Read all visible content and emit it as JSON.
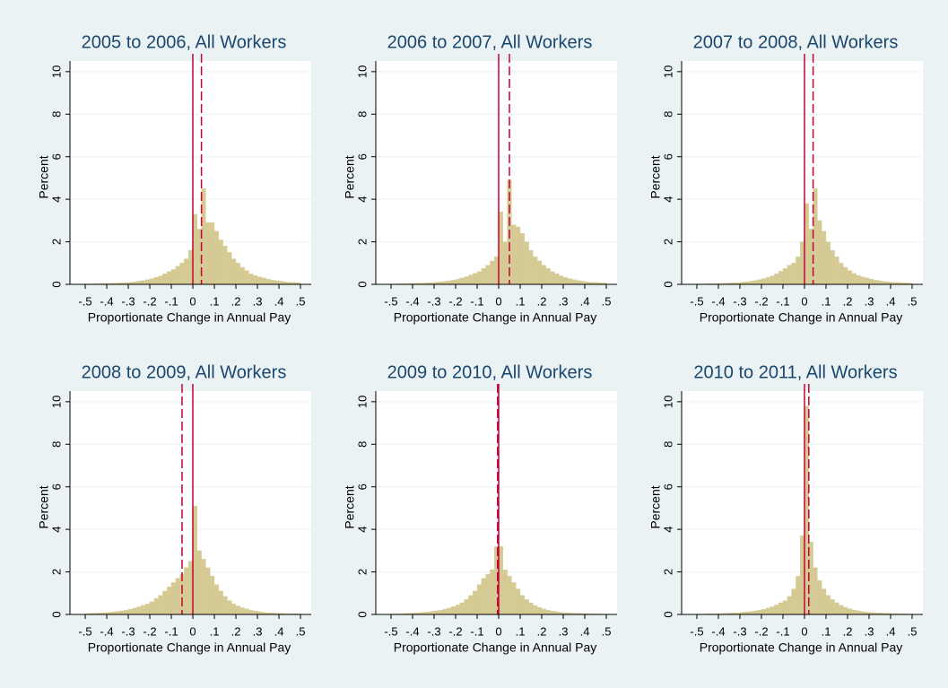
{
  "chart_data": [
    {
      "type": "histogram",
      "title": "2005 to 2006, All Workers",
      "xlabel": "Proportionate Change in Annual Pay",
      "ylabel": "Percent",
      "bins": [
        -0.5,
        -0.48,
        -0.46,
        -0.44,
        -0.42,
        -0.4,
        -0.38,
        -0.36,
        -0.34,
        -0.32,
        -0.3,
        -0.28,
        -0.26,
        -0.24,
        -0.22,
        -0.2,
        -0.18,
        -0.16,
        -0.14,
        -0.12,
        -0.1,
        -0.08,
        -0.06,
        -0.04,
        -0.02,
        0,
        0.02,
        0.04,
        0.06,
        0.08,
        0.1,
        0.12,
        0.14,
        0.16,
        0.18,
        0.2,
        0.22,
        0.24,
        0.26,
        0.28,
        0.3,
        0.32,
        0.34,
        0.36,
        0.38,
        0.4,
        0.42,
        0.44,
        0.46,
        0.48,
        0.5
      ],
      "values": [
        0.02,
        0.02,
        0.03,
        0.03,
        0.04,
        0.04,
        0.05,
        0.06,
        0.07,
        0.08,
        0.1,
        0.12,
        0.15,
        0.18,
        0.22,
        0.27,
        0.33,
        0.4,
        0.5,
        0.6,
        0.7,
        0.85,
        1.0,
        1.2,
        1.6,
        3.3,
        2.6,
        4.5,
        2.9,
        2.9,
        2.5,
        2.1,
        1.8,
        1.5,
        1.2,
        1.0,
        0.8,
        0.65,
        0.5,
        0.42,
        0.35,
        0.3,
        0.25,
        0.2,
        0.17,
        0.15,
        0.12,
        0.1,
        0.09,
        0.08
      ],
      "color": "#d6ca94",
      "xlim": [
        -0.55,
        0.55
      ],
      "ylim": [
        0,
        10.5
      ],
      "xticks": [
        {
          "value": -0.5,
          "label": "-.5"
        },
        {
          "value": -0.4,
          "label": "-.4"
        },
        {
          "value": -0.3,
          "label": "-.3"
        },
        {
          "value": -0.2,
          "label": "-.2"
        },
        {
          "value": -0.1,
          "label": "-.1"
        },
        0,
        {
          "value": 0.1,
          "label": ".1"
        },
        {
          "value": 0.2,
          "label": ".2"
        },
        {
          "value": 0.3,
          "label": ".3"
        },
        {
          "value": 0.4,
          "label": ".4"
        },
        {
          "value": 0.5,
          "label": ".5"
        }
      ],
      "yticks": [
        0,
        2,
        4,
        6,
        8,
        10
      ],
      "grid": true,
      "reference_lines": [
        {
          "value": 0,
          "style": "solid",
          "color": "#c10534"
        },
        {
          "value": 0.04,
          "style": "dashed",
          "color": "#c10534"
        }
      ]
    },
    {
      "type": "histogram",
      "title": "2006 to 2007, All Workers",
      "xlabel": "Proportionate Change in Annual Pay",
      "ylabel": "Percent",
      "bins": [
        -0.5,
        -0.48,
        -0.46,
        -0.44,
        -0.42,
        -0.4,
        -0.38,
        -0.36,
        -0.34,
        -0.32,
        -0.3,
        -0.28,
        -0.26,
        -0.24,
        -0.22,
        -0.2,
        -0.18,
        -0.16,
        -0.14,
        -0.12,
        -0.1,
        -0.08,
        -0.06,
        -0.04,
        -0.02,
        0,
        0.02,
        0.04,
        0.06,
        0.08,
        0.1,
        0.12,
        0.14,
        0.16,
        0.18,
        0.2,
        0.22,
        0.24,
        0.26,
        0.28,
        0.3,
        0.32,
        0.34,
        0.36,
        0.38,
        0.4,
        0.42,
        0.44,
        0.46,
        0.48,
        0.5
      ],
      "values": [
        0.02,
        0.02,
        0.03,
        0.03,
        0.04,
        0.04,
        0.05,
        0.06,
        0.07,
        0.08,
        0.1,
        0.12,
        0.14,
        0.17,
        0.2,
        0.24,
        0.3,
        0.36,
        0.44,
        0.52,
        0.6,
        0.75,
        0.9,
        1.1,
        1.3,
        3.4,
        2.0,
        4.9,
        2.8,
        2.7,
        2.4,
        2.0,
        1.6,
        1.3,
        1.1,
        0.9,
        0.75,
        0.6,
        0.5,
        0.4,
        0.33,
        0.27,
        0.22,
        0.18,
        0.15,
        0.12,
        0.1,
        0.09,
        0.08,
        0.07
      ],
      "color": "#d6ca94",
      "xlim": [
        -0.55,
        0.55
      ],
      "ylim": [
        0,
        10.5
      ],
      "xticks": [
        {
          "value": -0.5,
          "label": "-.5"
        },
        {
          "value": -0.4,
          "label": "-.4"
        },
        {
          "value": -0.3,
          "label": "-.3"
        },
        {
          "value": -0.2,
          "label": "-.2"
        },
        {
          "value": -0.1,
          "label": "-.1"
        },
        0,
        {
          "value": 0.1,
          "label": ".1"
        },
        {
          "value": 0.2,
          "label": ".2"
        },
        {
          "value": 0.3,
          "label": ".3"
        },
        {
          "value": 0.4,
          "label": ".4"
        },
        {
          "value": 0.5,
          "label": ".5"
        }
      ],
      "yticks": [
        0,
        2,
        4,
        6,
        8,
        10
      ],
      "grid": true,
      "reference_lines": [
        {
          "value": 0,
          "style": "solid",
          "color": "#c10534"
        },
        {
          "value": 0.05,
          "style": "dashed",
          "color": "#c10534"
        }
      ]
    },
    {
      "type": "histogram",
      "title": "2007 to 2008, All Workers",
      "xlabel": "Proportionate Change in Annual Pay",
      "ylabel": "Percent",
      "bins": [
        -0.5,
        -0.48,
        -0.46,
        -0.44,
        -0.42,
        -0.4,
        -0.38,
        -0.36,
        -0.34,
        -0.32,
        -0.3,
        -0.28,
        -0.26,
        -0.24,
        -0.22,
        -0.2,
        -0.18,
        -0.16,
        -0.14,
        -0.12,
        -0.1,
        -0.08,
        -0.06,
        -0.04,
        -0.02,
        0,
        0.02,
        0.04,
        0.06,
        0.08,
        0.1,
        0.12,
        0.14,
        0.16,
        0.18,
        0.2,
        0.22,
        0.24,
        0.26,
        0.28,
        0.3,
        0.32,
        0.34,
        0.36,
        0.38,
        0.4,
        0.42,
        0.44,
        0.46,
        0.48,
        0.5
      ],
      "values": [
        0.02,
        0.02,
        0.03,
        0.03,
        0.04,
        0.04,
        0.05,
        0.06,
        0.07,
        0.08,
        0.1,
        0.12,
        0.15,
        0.18,
        0.22,
        0.27,
        0.33,
        0.4,
        0.5,
        0.62,
        0.75,
        0.9,
        1.0,
        1.3,
        2.0,
        3.8,
        2.6,
        4.5,
        3.0,
        2.5,
        2.0,
        1.6,
        1.3,
        1.0,
        0.8,
        0.65,
        0.52,
        0.42,
        0.35,
        0.3,
        0.25,
        0.2,
        0.17,
        0.14,
        0.12,
        0.1,
        0.09,
        0.08,
        0.07,
        0.06
      ],
      "color": "#d6ca94",
      "xlim": [
        -0.55,
        0.55
      ],
      "ylim": [
        0,
        10.5
      ],
      "xticks": [
        {
          "value": -0.5,
          "label": "-.5"
        },
        {
          "value": -0.4,
          "label": "-.4"
        },
        {
          "value": -0.3,
          "label": "-.3"
        },
        {
          "value": -0.2,
          "label": "-.2"
        },
        {
          "value": -0.1,
          "label": "-.1"
        },
        0,
        {
          "value": 0.1,
          "label": ".1"
        },
        {
          "value": 0.2,
          "label": ".2"
        },
        {
          "value": 0.3,
          "label": ".3"
        },
        {
          "value": 0.4,
          "label": ".4"
        },
        {
          "value": 0.5,
          "label": ".5"
        }
      ],
      "yticks": [
        0,
        2,
        4,
        6,
        8,
        10
      ],
      "grid": true,
      "reference_lines": [
        {
          "value": 0,
          "style": "solid",
          "color": "#c10534"
        },
        {
          "value": 0.04,
          "style": "dashed",
          "color": "#c10534"
        }
      ]
    },
    {
      "type": "histogram",
      "title": "2008 to 2009, All Workers",
      "xlabel": "Proportionate Change in Annual Pay",
      "ylabel": "Percent",
      "bins": [
        -0.5,
        -0.48,
        -0.46,
        -0.44,
        -0.42,
        -0.4,
        -0.38,
        -0.36,
        -0.34,
        -0.32,
        -0.3,
        -0.28,
        -0.26,
        -0.24,
        -0.22,
        -0.2,
        -0.18,
        -0.16,
        -0.14,
        -0.12,
        -0.1,
        -0.08,
        -0.06,
        -0.04,
        -0.02,
        0,
        0.02,
        0.04,
        0.06,
        0.08,
        0.1,
        0.12,
        0.14,
        0.16,
        0.18,
        0.2,
        0.22,
        0.24,
        0.26,
        0.28,
        0.3,
        0.32,
        0.34,
        0.36,
        0.38,
        0.4,
        0.42,
        0.44,
        0.46,
        0.48,
        0.5
      ],
      "values": [
        0.04,
        0.05,
        0.06,
        0.07,
        0.08,
        0.1,
        0.12,
        0.14,
        0.17,
        0.2,
        0.25,
        0.3,
        0.36,
        0.43,
        0.5,
        0.6,
        0.75,
        0.9,
        1.1,
        1.3,
        1.5,
        1.7,
        1.9,
        2.2,
        2.5,
        5.1,
        3.0,
        2.6,
        2.2,
        1.8,
        1.4,
        1.1,
        0.85,
        0.65,
        0.5,
        0.4,
        0.32,
        0.26,
        0.2,
        0.16,
        0.13,
        0.1,
        0.08,
        0.07,
        0.06,
        0.05,
        0.04,
        0.04,
        0.03,
        0.03
      ],
      "color": "#d6ca94",
      "xlim": [
        -0.55,
        0.55
      ],
      "ylim": [
        0,
        10.5
      ],
      "xticks": [
        {
          "value": -0.5,
          "label": "-.5"
        },
        {
          "value": -0.4,
          "label": "-.4"
        },
        {
          "value": -0.3,
          "label": "-.3"
        },
        {
          "value": -0.2,
          "label": "-.2"
        },
        {
          "value": -0.1,
          "label": "-.1"
        },
        0,
        {
          "value": 0.1,
          "label": ".1"
        },
        {
          "value": 0.2,
          "label": ".2"
        },
        {
          "value": 0.3,
          "label": ".3"
        },
        {
          "value": 0.4,
          "label": ".4"
        },
        {
          "value": 0.5,
          "label": ".5"
        }
      ],
      "yticks": [
        0,
        2,
        4,
        6,
        8,
        10
      ],
      "grid": true,
      "reference_lines": [
        {
          "value": 0,
          "style": "solid",
          "color": "#c10534"
        },
        {
          "value": -0.05,
          "style": "dashed",
          "color": "#c10534"
        }
      ]
    },
    {
      "type": "histogram",
      "title": "2009 to 2010, All Workers",
      "xlabel": "Proportionate Change in Annual Pay",
      "ylabel": "Percent",
      "bins": [
        -0.5,
        -0.48,
        -0.46,
        -0.44,
        -0.42,
        -0.4,
        -0.38,
        -0.36,
        -0.34,
        -0.32,
        -0.3,
        -0.28,
        -0.26,
        -0.24,
        -0.22,
        -0.2,
        -0.18,
        -0.16,
        -0.14,
        -0.12,
        -0.1,
        -0.08,
        -0.06,
        -0.04,
        -0.02,
        0,
        0.02,
        0.04,
        0.06,
        0.08,
        0.1,
        0.12,
        0.14,
        0.16,
        0.18,
        0.2,
        0.22,
        0.24,
        0.26,
        0.28,
        0.3,
        0.32,
        0.34,
        0.36,
        0.38,
        0.4,
        0.42,
        0.44,
        0.46,
        0.48,
        0.5
      ],
      "values": [
        0.03,
        0.03,
        0.04,
        0.05,
        0.06,
        0.07,
        0.08,
        0.1,
        0.12,
        0.14,
        0.17,
        0.2,
        0.25,
        0.3,
        0.37,
        0.45,
        0.55,
        0.7,
        0.9,
        1.1,
        1.4,
        1.7,
        1.9,
        2.1,
        3.2,
        3.2,
        2.1,
        1.8,
        1.5,
        1.2,
        0.9,
        0.7,
        0.55,
        0.42,
        0.33,
        0.26,
        0.2,
        0.16,
        0.13,
        0.1,
        0.08,
        0.07,
        0.06,
        0.05,
        0.04,
        0.04,
        0.03,
        0.03,
        0.02,
        0.02
      ],
      "color": "#d6ca94",
      "xlim": [
        -0.55,
        0.55
      ],
      "ylim": [
        0,
        10.5
      ],
      "xticks": [
        {
          "value": -0.5,
          "label": "-.5"
        },
        {
          "value": -0.4,
          "label": "-.4"
        },
        {
          "value": -0.3,
          "label": "-.3"
        },
        {
          "value": -0.2,
          "label": "-.2"
        },
        {
          "value": -0.1,
          "label": "-.1"
        },
        0,
        {
          "value": 0.1,
          "label": ".1"
        },
        {
          "value": 0.2,
          "label": ".2"
        },
        {
          "value": 0.3,
          "label": ".3"
        },
        {
          "value": 0.4,
          "label": ".4"
        },
        {
          "value": 0.5,
          "label": ".5"
        }
      ],
      "yticks": [
        0,
        2,
        4,
        6,
        8,
        10
      ],
      "grid": true,
      "reference_lines": [
        {
          "value": 0,
          "style": "solid",
          "color": "#c10534"
        },
        {
          "value": -0.005,
          "style": "dashed",
          "color": "#c10534"
        }
      ]
    },
    {
      "type": "histogram",
      "title": "2010 to 2011, All Workers",
      "xlabel": "Proportionate Change in Annual Pay",
      "ylabel": "Percent",
      "bins": [
        -0.5,
        -0.48,
        -0.46,
        -0.44,
        -0.42,
        -0.4,
        -0.38,
        -0.36,
        -0.34,
        -0.32,
        -0.3,
        -0.28,
        -0.26,
        -0.24,
        -0.22,
        -0.2,
        -0.18,
        -0.16,
        -0.14,
        -0.12,
        -0.1,
        -0.08,
        -0.06,
        -0.04,
        -0.02,
        0,
        0.02,
        0.04,
        0.06,
        0.08,
        0.1,
        0.12,
        0.14,
        0.16,
        0.18,
        0.2,
        0.22,
        0.24,
        0.26,
        0.28,
        0.3,
        0.32,
        0.34,
        0.36,
        0.38,
        0.4,
        0.42,
        0.44,
        0.46,
        0.48,
        0.5
      ],
      "values": [
        0.02,
        0.02,
        0.03,
        0.03,
        0.04,
        0.04,
        0.05,
        0.06,
        0.07,
        0.08,
        0.1,
        0.12,
        0.14,
        0.17,
        0.2,
        0.24,
        0.3,
        0.37,
        0.45,
        0.55,
        0.65,
        0.85,
        1.2,
        1.8,
        3.7,
        9.8,
        3.4,
        2.2,
        1.6,
        1.2,
        0.9,
        0.7,
        0.55,
        0.43,
        0.34,
        0.27,
        0.21,
        0.17,
        0.14,
        0.11,
        0.09,
        0.08,
        0.07,
        0.06,
        0.05,
        0.04,
        0.04,
        0.03,
        0.03,
        0.02
      ],
      "color": "#d6ca94",
      "xlim": [
        -0.55,
        0.55
      ],
      "ylim": [
        0,
        10.5
      ],
      "xticks": [
        {
          "value": -0.5,
          "label": "-.5"
        },
        {
          "value": -0.4,
          "label": "-.4"
        },
        {
          "value": -0.3,
          "label": "-.3"
        },
        {
          "value": -0.2,
          "label": "-.2"
        },
        {
          "value": -0.1,
          "label": "-.1"
        },
        0,
        {
          "value": 0.1,
          "label": ".1"
        },
        {
          "value": 0.2,
          "label": ".2"
        },
        {
          "value": 0.3,
          "label": ".3"
        },
        {
          "value": 0.4,
          "label": ".4"
        },
        {
          "value": 0.5,
          "label": ".5"
        }
      ],
      "yticks": [
        0,
        2,
        4,
        6,
        8,
        10
      ],
      "grid": true,
      "reference_lines": [
        {
          "value": 0,
          "style": "solid",
          "color": "#c10534"
        },
        {
          "value": 0.02,
          "style": "dashed",
          "color": "#c10534"
        }
      ]
    }
  ]
}
